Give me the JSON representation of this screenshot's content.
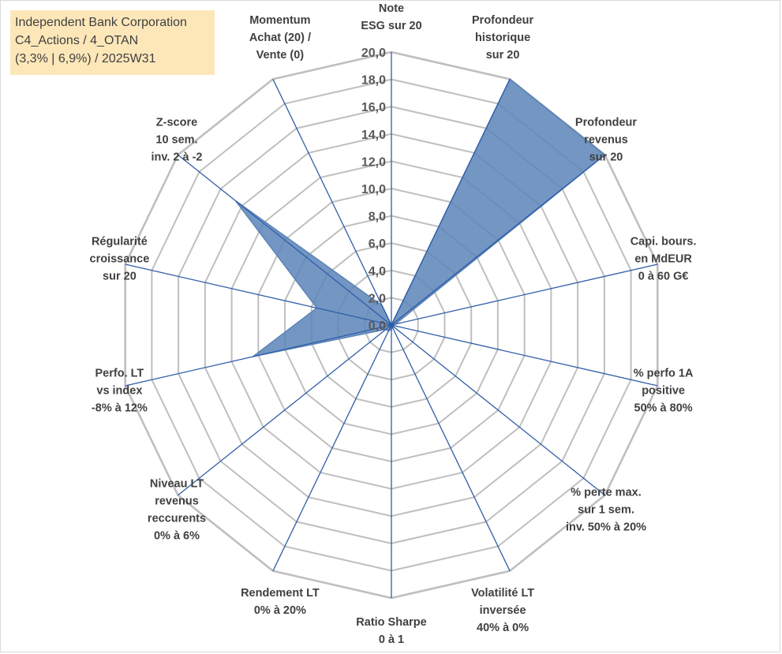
{
  "title_box": {
    "line1": "Independent Bank Corporation",
    "line2": "C4_Actions / 4_OTAN",
    "line3": "(3,3% | 6,9%) / 2025W31"
  },
  "colors": {
    "fill": "#5b84b8",
    "axis": "#2e5da8",
    "grid": "#bfbfbf",
    "title_bg": "#fde7b9"
  },
  "chart_data": {
    "type": "radar",
    "title": "",
    "rmin": 0,
    "rmax": 20,
    "tick_step": 2,
    "tick_labels": [
      "0,0",
      "2,0",
      "4,0",
      "6,0",
      "8,0",
      "10,0",
      "12,0",
      "14,0",
      "16,0",
      "18,0",
      "20,0"
    ],
    "axes": [
      {
        "label": [
          "Note",
          "ESG sur 20"
        ],
        "value": 0
      },
      {
        "label": [
          "Profondeur",
          "historique",
          "sur 20"
        ],
        "value": 20
      },
      {
        "label": [
          "Profondeur",
          "revenus",
          "sur 20"
        ],
        "value": 20
      },
      {
        "label": [
          "Capi. bours.",
          "en MdEUR",
          "0 à 60 G€"
        ],
        "value": 0.3
      },
      {
        "label": [
          "% perfo 1A",
          "positive",
          "50% à 80%"
        ],
        "value": 0
      },
      {
        "label": [
          "% perte max.",
          "sur 1 sem.",
          "inv. 50% à 20%"
        ],
        "value": 0.2
      },
      {
        "label": [
          "Volatilité LT",
          "inversée",
          "40% à 0%"
        ],
        "value": 0.2
      },
      {
        "label": [
          "Ratio Sharpe",
          "0 à 1"
        ],
        "value": 0.3
      },
      {
        "label": [
          "Rendement LT",
          "0% à 20%"
        ],
        "value": 0.5
      },
      {
        "label": [
          "Niveau LT",
          "revenus",
          "reccurents",
          "0% à 6%"
        ],
        "value": 0.5
      },
      {
        "label": [
          "Perfo. LT",
          "vs index",
          "-8% à 12%"
        ],
        "value": 10.4
      },
      {
        "label": [
          "Régularité",
          "croissance",
          "sur 20"
        ],
        "value": 5.6
      },
      {
        "label": [
          "Z-score",
          "10 sem.",
          "inv. 2 à -2"
        ],
        "value": 14.6
      },
      {
        "label": [
          "Momentum",
          "Achat (20) /",
          "Vente (0)"
        ],
        "value": 1.6
      }
    ]
  }
}
